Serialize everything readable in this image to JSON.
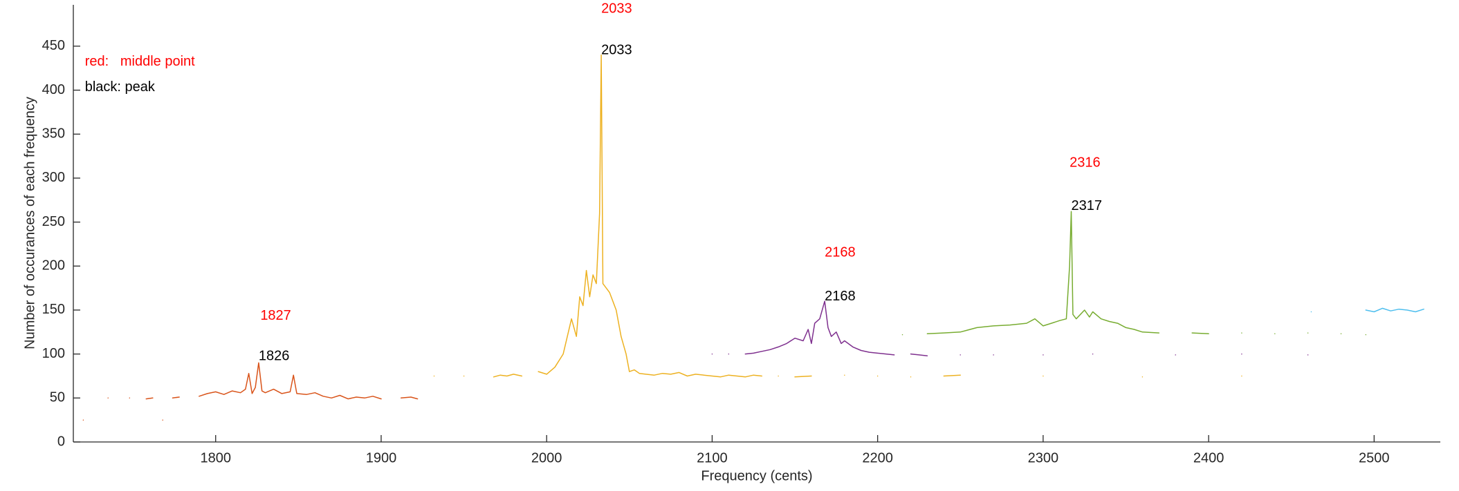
{
  "chart_data": {
    "type": "line",
    "x_label": "Frequency (cents)",
    "y_label": "Number of occurances of each frequency",
    "xlim": [
      1714,
      2540
    ],
    "ylim": [
      0,
      497
    ],
    "xticks": [
      1800,
      1900,
      2000,
      2100,
      2200,
      2300,
      2400,
      2500
    ],
    "yticks": [
      0,
      50,
      100,
      150,
      200,
      250,
      300,
      350,
      400,
      450
    ],
    "grid": false,
    "series": [
      {
        "color": "#d95319",
        "x": [
          1720,
          1725,
          1735,
          1740,
          1748,
          1752,
          1758,
          1762,
          1766,
          1768,
          1770,
          1774,
          1778,
          1784,
          1790,
          1795,
          1800,
          1805,
          1810,
          1815,
          1818,
          1820,
          1822,
          1824,
          1826,
          1828,
          1830,
          1835,
          1840,
          1845,
          1847,
          1849,
          1855,
          1860,
          1865,
          1870,
          1875,
          1880,
          1885,
          1890,
          1895,
          1900,
          1906,
          1912,
          1918,
          1922
        ],
        "values": [
          25,
          null,
          50,
          null,
          50,
          null,
          49,
          50,
          null,
          25,
          null,
          50,
          51,
          null,
          52,
          55,
          57,
          54,
          58,
          56,
          60,
          78,
          55,
          62,
          90,
          58,
          56,
          60,
          55,
          57,
          76,
          55,
          54,
          56,
          52,
          50,
          53,
          49,
          51,
          50,
          52,
          49,
          null,
          50,
          51,
          49
        ]
      },
      {
        "color": "#edb120",
        "x": [
          1932,
          1940,
          1950,
          1960,
          1968,
          1972,
          1976,
          1980,
          1985,
          1990,
          1995,
          2000,
          2005,
          2010,
          2015,
          2018,
          2020,
          2022,
          2024,
          2026,
          2028,
          2030,
          2032,
          2033,
          2034,
          2036,
          2038,
          2040,
          2042,
          2045,
          2048,
          2050,
          2053,
          2056,
          2060,
          2065,
          2070,
          2075,
          2080,
          2085,
          2090,
          2095,
          2100,
          2105,
          2110,
          2115,
          2120,
          2125,
          2130,
          2135,
          2140,
          2145,
          2150,
          2160,
          2170,
          2180,
          2190,
          2200,
          2210,
          2220,
          2230,
          2240,
          2250,
          2260,
          2300,
          2320,
          2360,
          2400,
          2420,
          2450
        ],
        "values": [
          75,
          null,
          75,
          null,
          74,
          76,
          75,
          77,
          75,
          null,
          80,
          77,
          85,
          100,
          140,
          120,
          165,
          155,
          195,
          165,
          190,
          180,
          260,
          440,
          180,
          175,
          170,
          160,
          150,
          120,
          100,
          80,
          82,
          78,
          77,
          76,
          78,
          77,
          79,
          75,
          77,
          76,
          75,
          74,
          76,
          75,
          74,
          76,
          75,
          null,
          75,
          null,
          74,
          75,
          null,
          76,
          null,
          75,
          null,
          74,
          null,
          75,
          76,
          null,
          75,
          null,
          74,
          null,
          75,
          null
        ]
      },
      {
        "color": "#7e2f8e",
        "x": [
          2100,
          2105,
          2110,
          2115,
          2120,
          2125,
          2130,
          2135,
          2140,
          2145,
          2150,
          2155,
          2158,
          2160,
          2162,
          2165,
          2168,
          2170,
          2172,
          2175,
          2178,
          2180,
          2185,
          2190,
          2195,
          2200,
          2205,
          2210,
          2215,
          2220,
          2225,
          2230,
          2240,
          2250,
          2260,
          2270,
          2290,
          2300,
          2320,
          2330,
          2360,
          2380,
          2400,
          2420,
          2440,
          2460,
          2475
        ],
        "values": [
          100,
          null,
          100,
          null,
          100,
          101,
          103,
          105,
          108,
          112,
          118,
          115,
          128,
          112,
          135,
          140,
          160,
          130,
          120,
          125,
          112,
          115,
          108,
          104,
          102,
          101,
          100,
          99,
          null,
          100,
          99,
          98,
          null,
          99,
          null,
          99,
          null,
          99,
          null,
          100,
          null,
          99,
          null,
          100,
          null,
          99,
          null
        ]
      },
      {
        "color": "#77ac30",
        "x": [
          2215,
          2225,
          2230,
          2240,
          2250,
          2260,
          2270,
          2280,
          2290,
          2295,
          2300,
          2305,
          2310,
          2314,
          2316,
          2317,
          2318,
          2320,
          2325,
          2328,
          2330,
          2335,
          2340,
          2345,
          2350,
          2355,
          2360,
          2370,
          2380,
          2390,
          2400,
          2410,
          2420,
          2430,
          2440,
          2450,
          2460,
          2470,
          2480,
          2490,
          2495
        ],
        "values": [
          122,
          null,
          123,
          124,
          125,
          130,
          132,
          133,
          135,
          140,
          132,
          135,
          138,
          140,
          200,
          262,
          145,
          140,
          150,
          142,
          148,
          140,
          137,
          135,
          130,
          128,
          125,
          124,
          null,
          124,
          123,
          null,
          124,
          null,
          123,
          null,
          124,
          null,
          123,
          null,
          122
        ]
      },
      {
        "color": "#4dbeee",
        "x": [
          2462,
          2466,
          2495,
          2500,
          2505,
          2510,
          2515,
          2520,
          2525,
          2530
        ],
        "values": [
          148,
          null,
          150,
          148,
          152,
          149,
          151,
          150,
          148,
          151
        ]
      }
    ],
    "annotations": [
      {
        "text": "red:   middle point",
        "x": 1721,
        "y": 432,
        "color": "#ff0000"
      },
      {
        "text": "black: peak",
        "x": 1721,
        "y": 403,
        "color": "#000000"
      },
      {
        "text": "1827",
        "x": 1827,
        "y": 143,
        "color": "#ff0000"
      },
      {
        "text": "1826",
        "x": 1826,
        "y": 97,
        "color": "#000000"
      },
      {
        "text": "2033",
        "x": 2033,
        "y": 492,
        "color": "#ff0000"
      },
      {
        "text": "2033",
        "x": 2033,
        "y": 445,
        "color": "#000000"
      },
      {
        "text": "2168",
        "x": 2168,
        "y": 215,
        "color": "#ff0000"
      },
      {
        "text": "2168",
        "x": 2168,
        "y": 165,
        "color": "#000000"
      },
      {
        "text": "2316",
        "x": 2316,
        "y": 317,
        "color": "#ff0000"
      },
      {
        "text": "2317",
        "x": 2317,
        "y": 268,
        "color": "#000000"
      }
    ]
  }
}
